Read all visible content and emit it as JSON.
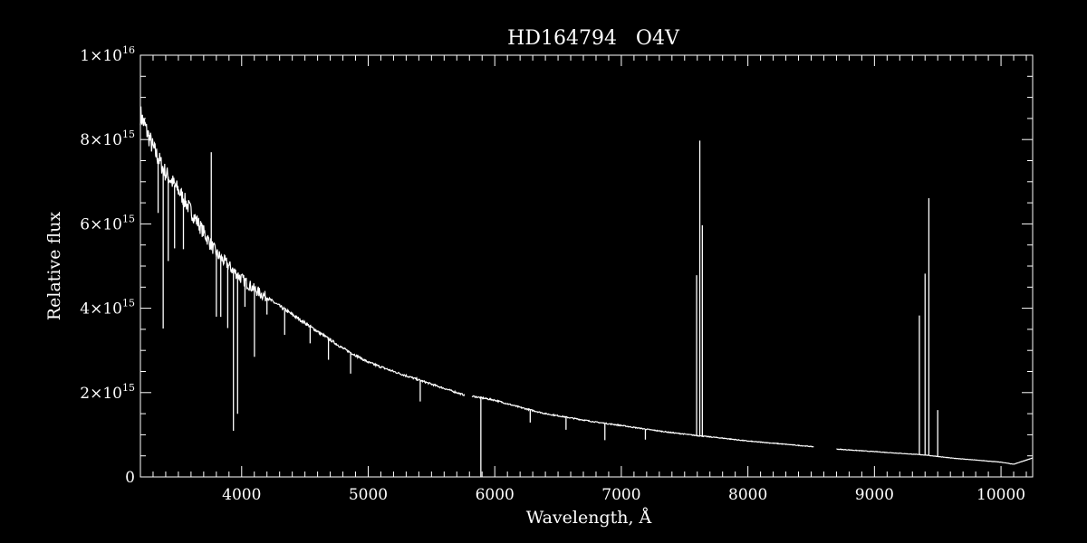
{
  "colors": {
    "background": "#000000",
    "foreground": "#ffffff"
  },
  "chart_data": {
    "type": "line",
    "title": "HD164794   O4V",
    "xlabel": "Wavelength, Å",
    "ylabel": "Relative flux",
    "xlim": [
      3200,
      10250
    ],
    "ylim": [
      0,
      1e+16
    ],
    "x_ticks": [
      4000,
      5000,
      6000,
      7000,
      8000,
      9000,
      10000
    ],
    "x_tick_labels": [
      "4000",
      "5000",
      "6000",
      "7000",
      "8000",
      "9000",
      "10000"
    ],
    "y_ticks": [
      {
        "value": 0,
        "mantissa": "0",
        "exponent": ""
      },
      {
        "value": 2000000000000000.0,
        "mantissa": "2×10",
        "exponent": "15"
      },
      {
        "value": 4000000000000000.0,
        "mantissa": "4×10",
        "exponent": "15"
      },
      {
        "value": 6000000000000000.0,
        "mantissa": "6×10",
        "exponent": "15"
      },
      {
        "value": 8000000000000000.0,
        "mantissa": "8×10",
        "exponent": "15"
      },
      {
        "value": 1e+16,
        "mantissa": "1×10",
        "exponent": "16"
      }
    ],
    "grid": false,
    "series": [
      {
        "continuum": [
          [
            3200,
            8600000000000000.0
          ],
          [
            3300,
            7800000000000000.0
          ],
          [
            3400,
            7200000000000000.0
          ],
          [
            3500,
            6800000000000000.0
          ],
          [
            3600,
            6300000000000000.0
          ],
          [
            3700,
            5800000000000000.0
          ],
          [
            3800,
            5300000000000000.0
          ],
          [
            3900,
            5000000000000000.0
          ],
          [
            4000,
            4700000000000000.0
          ],
          [
            4100,
            4450000000000000.0
          ],
          [
            4200,
            4250000000000000.0
          ],
          [
            4400,
            3850000000000000.0
          ],
          [
            4600,
            3450000000000000.0
          ],
          [
            4800,
            3050000000000000.0
          ],
          [
            5000,
            2720000000000000.0
          ],
          [
            5200,
            2500000000000000.0
          ],
          [
            5400,
            2300000000000000.0
          ],
          [
            5600,
            2100000000000000.0
          ],
          [
            5750,
            1950000000000000.0
          ],
          [
            5850,
            1900000000000000.0
          ],
          [
            6000,
            1820000000000000.0
          ],
          [
            6200,
            1650000000000000.0
          ],
          [
            6400,
            1500000000000000.0
          ],
          [
            6600,
            1400000000000000.0
          ],
          [
            6800,
            1300000000000000.0
          ],
          [
            7000,
            1220000000000000.0
          ],
          [
            7200,
            1130000000000000.0
          ],
          [
            7400,
            1050000000000000.0
          ],
          [
            7600,
            980000000000000.0
          ],
          [
            7800,
            920000000000000.0
          ],
          [
            8000,
            850000000000000.0
          ],
          [
            8200,
            800000000000000.0
          ],
          [
            8500,
            720000000000000.0
          ],
          [
            8700,
            660000000000000.0
          ],
          [
            9000,
            600000000000000.0
          ],
          [
            9200,
            560000000000000.0
          ],
          [
            9400,
            520000000000000.0
          ],
          [
            9600,
            450000000000000.0
          ],
          [
            9800,
            400000000000000.0
          ],
          [
            10000,
            350000000000000.0
          ],
          [
            10100,
            300000000000000.0
          ],
          [
            10250,
            450000000000000.0
          ]
        ],
        "gaps": [
          [
            5760,
            5820
          ],
          [
            8520,
            8700
          ]
        ],
        "features": [
          [
            3340,
            -1300000000000000.0
          ],
          [
            3380,
            -3800000000000000.0
          ],
          [
            3420,
            -2000000000000000.0
          ],
          [
            3470,
            -1500000000000000.0
          ],
          [
            3540,
            -1200000000000000.0
          ],
          [
            3760,
            2200000000000000.0
          ],
          [
            3800,
            -1500000000000000.0
          ],
          [
            3835,
            -1400000000000000.0
          ],
          [
            3890,
            -1500000000000000.0
          ],
          [
            3935,
            -3800000000000000.0
          ],
          [
            3968,
            -3300000000000000.0
          ],
          [
            4026,
            -600000000000000.0
          ],
          [
            4101,
            -1600000000000000.0
          ],
          [
            4200,
            -400000000000000.0
          ],
          [
            4340,
            -600000000000000.0
          ],
          [
            4541,
            -400000000000000.0
          ],
          [
            4686,
            -500000000000000.0
          ],
          [
            4861,
            -500000000000000.0
          ],
          [
            5411,
            -500000000000000.0
          ],
          [
            5890,
            -1900000000000000.0
          ],
          [
            6280,
            -300000000000000.0
          ],
          [
            6563,
            -300000000000000.0
          ],
          [
            6870,
            -400000000000000.0
          ],
          [
            7190,
            -250000000000000.0
          ],
          [
            7595,
            3800000000000000.0
          ],
          [
            7620,
            7000000000000000.0
          ],
          [
            7640,
            5000000000000000.0
          ],
          [
            9355,
            3300000000000000.0
          ],
          [
            9400,
            4300000000000000.0
          ],
          [
            9430,
            6100000000000000.0
          ],
          [
            9500,
            1100000000000000.0
          ]
        ]
      }
    ]
  }
}
